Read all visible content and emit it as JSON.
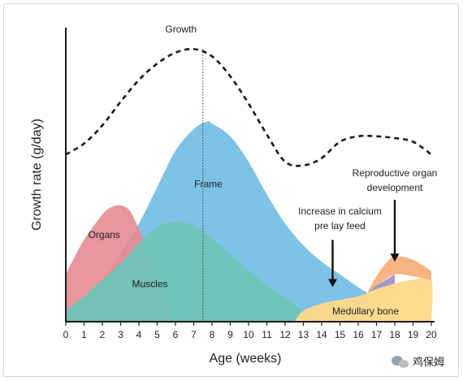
{
  "chart_data": {
    "type": "area",
    "title": "",
    "xlabel": "Age (weeks)",
    "ylabel": "Growth rate (g/day)",
    "xlim": [
      0,
      20
    ],
    "ylim": [
      0,
      16
    ],
    "x_ticks": [
      "0",
      "1",
      "2",
      "3",
      "4",
      "5",
      "6",
      "7",
      "8",
      "9",
      "10",
      "11",
      "12",
      "13",
      "14",
      "15",
      "16",
      "17",
      "18",
      "19",
      "20"
    ],
    "colors": {
      "organs": "#e58a92",
      "frame": "#7ec2e6",
      "muscles": "#6fc4b6",
      "medullary_bone": "#ffd98a",
      "reproductive": "#f6b07c",
      "overlap": "#9a8fc3",
      "growth_line": "#1a1a1a",
      "axis": "#1a1a1a"
    },
    "series": [
      {
        "name": "Growth",
        "style": "dashed-line",
        "points": [
          [
            0,
            9.2
          ],
          [
            1,
            9.8
          ],
          [
            2,
            10.8
          ],
          [
            3,
            12.1
          ],
          [
            4,
            13.3
          ],
          [
            5,
            14.2
          ],
          [
            6,
            14.8
          ],
          [
            7,
            15.0
          ],
          [
            8,
            14.6
          ],
          [
            9,
            13.5
          ],
          [
            10,
            12.0
          ],
          [
            11,
            10.3
          ],
          [
            12,
            8.8
          ],
          [
            13,
            8.6
          ],
          [
            14,
            9.0
          ],
          [
            15,
            9.9
          ],
          [
            16,
            10.2
          ],
          [
            17,
            10.2
          ],
          [
            18,
            10.1
          ],
          [
            19,
            9.9
          ],
          [
            20,
            9.2
          ]
        ]
      },
      {
        "name": "Frame",
        "style": "area",
        "points": [
          [
            0,
            0
          ],
          [
            1,
            1.0
          ],
          [
            2,
            2.2
          ],
          [
            3,
            3.7
          ],
          [
            4,
            5.4
          ],
          [
            5,
            7.4
          ],
          [
            6,
            9.4
          ],
          [
            7,
            10.6
          ],
          [
            7.7,
            11.0
          ],
          [
            8,
            10.9
          ],
          [
            9,
            10.2
          ],
          [
            10,
            8.8
          ],
          [
            11,
            7.0
          ],
          [
            12,
            5.4
          ],
          [
            13,
            4.2
          ],
          [
            14,
            3.3
          ],
          [
            15,
            2.6
          ],
          [
            16,
            1.9
          ],
          [
            16.5,
            1.6
          ]
        ]
      },
      {
        "name": "Organs",
        "style": "area",
        "points": [
          [
            0,
            2.6
          ],
          [
            0.5,
            3.6
          ],
          [
            1,
            4.5
          ],
          [
            2,
            5.9
          ],
          [
            2.5,
            6.3
          ],
          [
            3,
            6.4
          ],
          [
            3.5,
            6.1
          ],
          [
            4,
            5.1
          ],
          [
            4.5,
            3.9
          ],
          [
            5,
            2.6
          ],
          [
            5.5,
            1.4
          ],
          [
            6,
            0
          ]
        ]
      },
      {
        "name": "Muscles",
        "style": "area",
        "points": [
          [
            0,
            0.6
          ],
          [
            1,
            1.4
          ],
          [
            2,
            2.3
          ],
          [
            3,
            3.2
          ],
          [
            4,
            4.3
          ],
          [
            5,
            5.2
          ],
          [
            6,
            5.5
          ],
          [
            7,
            5.3
          ],
          [
            8,
            4.6
          ],
          [
            9,
            3.7
          ],
          [
            10,
            2.8
          ],
          [
            11,
            2.0
          ],
          [
            12,
            1.3
          ],
          [
            13,
            0.6
          ],
          [
            14,
            0
          ]
        ]
      },
      {
        "name": "Medullary bone",
        "style": "area",
        "points": [
          [
            12.5,
            0
          ],
          [
            13,
            0.6
          ],
          [
            14,
            1.0
          ],
          [
            15,
            1.2
          ],
          [
            16,
            1.4
          ],
          [
            17,
            1.8
          ],
          [
            18,
            2.1
          ],
          [
            19,
            2.3
          ],
          [
            20,
            2.3
          ],
          [
            20,
            0
          ]
        ]
      },
      {
        "name": "Reproductive organ development",
        "style": "area",
        "points": [
          [
            16.5,
            1.6
          ],
          [
            17,
            2.5
          ],
          [
            17.5,
            3.2
          ],
          [
            18,
            3.6
          ],
          [
            19,
            3.4
          ],
          [
            20,
            2.8
          ],
          [
            20,
            2.3
          ],
          [
            19,
            2.5
          ],
          [
            18,
            2.6
          ],
          [
            17,
            2.0
          ]
        ]
      }
    ],
    "annotations": [
      {
        "text": "Growth",
        "x": 6.3,
        "y": 15.9
      },
      {
        "text": "Frame",
        "x": 7.8,
        "y": 7.4
      },
      {
        "text": "Organs",
        "x": 2.1,
        "y": 4.6
      },
      {
        "text": "Muscles",
        "x": 4.6,
        "y": 1.9
      },
      {
        "text": "Increase in calcium",
        "x": 15.0,
        "y": 5.9
      },
      {
        "text": "pre lay feed",
        "x": 15.0,
        "y": 5.1
      },
      {
        "text": "Reproductive organ",
        "x": 18.0,
        "y": 8.0
      },
      {
        "text": "development",
        "x": 18.0,
        "y": 7.2
      },
      {
        "text": "Medullary bone",
        "x": 16.4,
        "y": 0.4
      }
    ],
    "arrows": [
      {
        "target": "Increase in calcium pre lay feed",
        "x": 14.6,
        "y_from": 4.5,
        "y_to": 1.9
      },
      {
        "target": "Reproductive organ development",
        "x": 18.0,
        "y_from": 6.7,
        "y_to": 3.3
      }
    ],
    "reference_line": {
      "style": "dotted",
      "x": 7.5
    }
  },
  "watermark": {
    "text": "鸡保姆"
  }
}
